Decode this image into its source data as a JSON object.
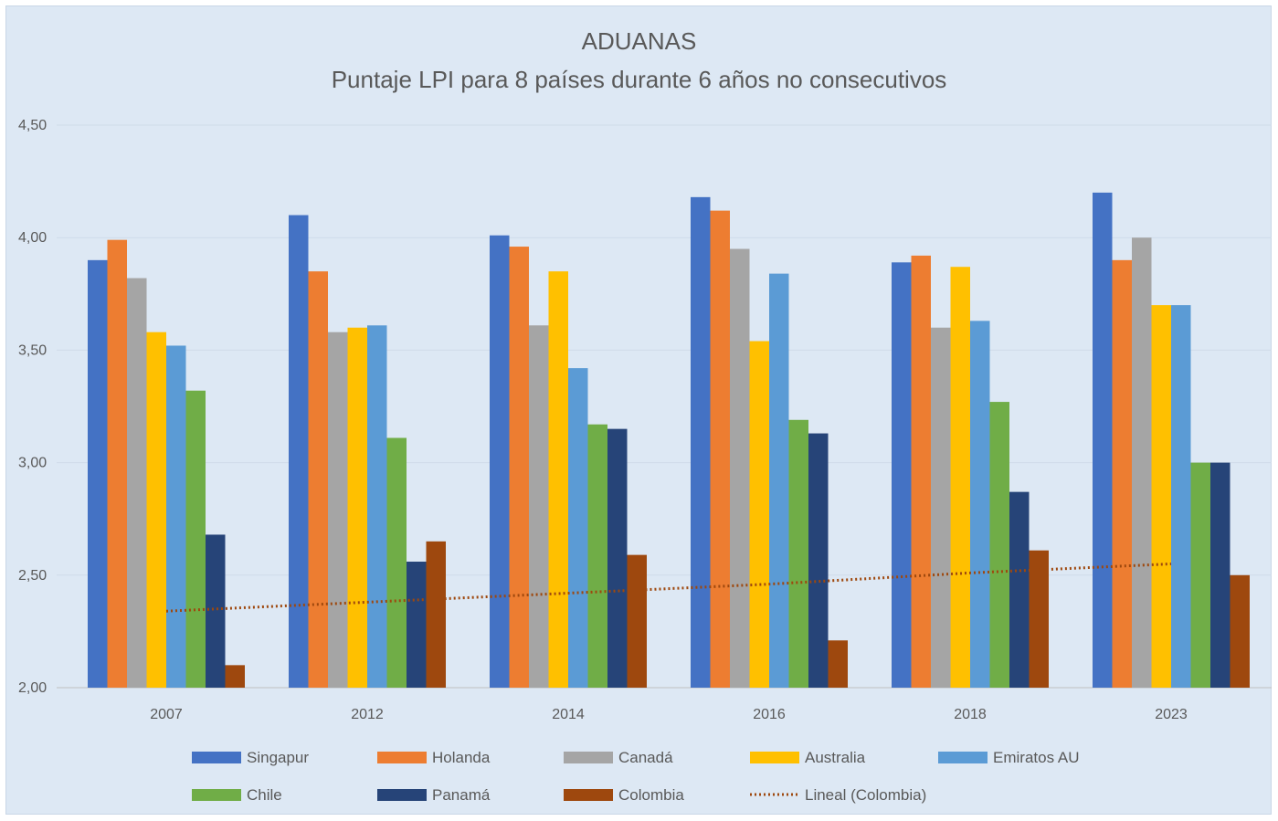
{
  "chart_data": {
    "type": "bar",
    "title": "ADUANAS",
    "subtitle": "Puntaje LPI para 8 países durante 6 años no consecutivos",
    "categories": [
      "2007",
      "2012",
      "2014",
      "2016",
      "2018",
      "2023"
    ],
    "ylim": [
      2.0,
      4.5
    ],
    "yticks": [
      "2,00",
      "2,50",
      "3,00",
      "3,50",
      "4,00",
      "4,50"
    ],
    "ytick_values": [
      2.0,
      2.5,
      3.0,
      3.5,
      4.0,
      4.5
    ],
    "grid": true,
    "legend_position": "bottom",
    "series": [
      {
        "name": "Singapur",
        "color": "#4472c4",
        "values": [
          3.9,
          4.1,
          4.01,
          4.18,
          3.89,
          4.2
        ]
      },
      {
        "name": "Holanda",
        "color": "#ed7d31",
        "values": [
          3.99,
          3.85,
          3.96,
          4.12,
          3.92,
          3.9
        ]
      },
      {
        "name": "Canadá",
        "color": "#a5a5a5",
        "values": [
          3.82,
          3.58,
          3.61,
          3.95,
          3.6,
          4.0
        ]
      },
      {
        "name": "Australia",
        "color": "#ffc000",
        "values": [
          3.58,
          3.6,
          3.85,
          3.54,
          3.87,
          3.7
        ]
      },
      {
        "name": "Emiratos AU",
        "color": "#5b9bd5",
        "values": [
          3.52,
          3.61,
          3.42,
          3.84,
          3.63,
          3.7
        ]
      },
      {
        "name": "Chile",
        "color": "#70ad47",
        "values": [
          3.32,
          3.11,
          3.17,
          3.19,
          3.27,
          3.0
        ]
      },
      {
        "name": "Panamá",
        "color": "#264478",
        "values": [
          2.68,
          2.56,
          3.15,
          3.13,
          2.87,
          3.0
        ]
      },
      {
        "name": "Colombia",
        "color": "#9e480e",
        "values": [
          2.1,
          2.65,
          2.59,
          2.21,
          2.61,
          2.5
        ]
      }
    ],
    "trendline": {
      "name": "Lineal (Colombia)",
      "color": "#9e480e",
      "style": "dotted",
      "values": [
        2.34,
        2.38,
        2.42,
        2.46,
        2.51,
        2.55
      ]
    }
  }
}
